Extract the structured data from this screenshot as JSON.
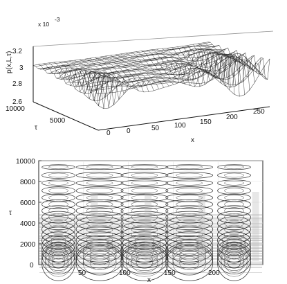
{
  "chart_data": [
    {
      "type": "surface",
      "scale_label": "x 10",
      "scale_exponent": "-3",
      "xlabel": "x",
      "ylabel": "τ",
      "zlabel": "p(x,L,τ)",
      "x_ticks": [
        "0",
        "50",
        "100",
        "150",
        "200",
        "250"
      ],
      "tau_ticks": [
        "0",
        "5000",
        "10000"
      ],
      "z_ticks": [
        "2.6",
        "2.8",
        "3",
        "3.2"
      ],
      "x_range": [
        0,
        250
      ],
      "tau_range": [
        0,
        10000
      ],
      "z_range": [
        0.0026,
        0.0032
      ]
    },
    {
      "type": "contour",
      "xlabel": "x",
      "ylabel": "τ",
      "x_ticks": [
        "50",
        "100",
        "150",
        "200"
      ],
      "y_ticks": [
        "0",
        "2000",
        "4000",
        "6000",
        "8000",
        "10000"
      ],
      "x_range": [
        0,
        250
      ],
      "y_range": [
        0,
        10000
      ]
    }
  ]
}
